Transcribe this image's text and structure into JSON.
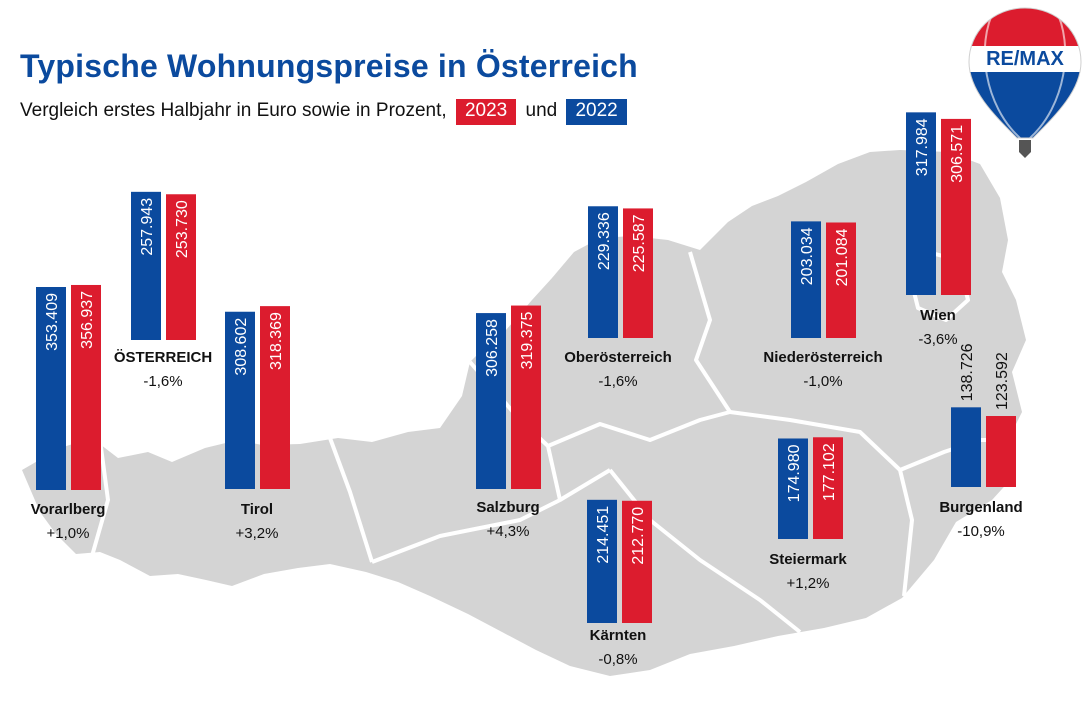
{
  "title": "Typische Wohnungspreise in Österreich",
  "subtitle": {
    "text": "Vergleich erstes Halbjahr in Euro sowie in Prozent,",
    "legend_2023": "2023",
    "connector": "und",
    "legend_2022": "2022"
  },
  "logo": {
    "text": "RE/MAX"
  },
  "colors": {
    "blue_2022": "#0b4a9e",
    "red_2023": "#dc1c2e",
    "map_gray": "#d4d4d4",
    "border_white": "#ffffff"
  },
  "chart_data": {
    "type": "bar",
    "title": "Typische Wohnungspreise in Österreich",
    "subtitle": "Vergleich erstes Halbjahr in Euro sowie in Prozent, 2023 und 2022",
    "series": [
      {
        "name": "2022",
        "color": "#0b4a9e"
      },
      {
        "name": "2023",
        "color": "#dc1c2e"
      }
    ],
    "regions": [
      {
        "name": "Vorarlberg",
        "v2022": 353409,
        "v2023": 356937,
        "label2022": "353.409",
        "label2023": "356.937",
        "change": "+1,0%"
      },
      {
        "name": "ÖSTERREICH",
        "v2022": 257943,
        "v2023": 253730,
        "label2022": "257.943",
        "label2023": "253.730",
        "change": "-1,6%"
      },
      {
        "name": "Tirol",
        "v2022": 308602,
        "v2023": 318369,
        "label2022": "308.602",
        "label2023": "318.369",
        "change": "+3,2%"
      },
      {
        "name": "Salzburg",
        "v2022": 306258,
        "v2023": 319375,
        "label2022": "306.258",
        "label2023": "319.375",
        "change": "+4,3%"
      },
      {
        "name": "Oberösterreich",
        "v2022": 229336,
        "v2023": 225587,
        "label2022": "229.336",
        "label2023": "225.587",
        "change": "-1,6%"
      },
      {
        "name": "Kärnten",
        "v2022": 214451,
        "v2023": 212770,
        "label2022": "214.451",
        "label2023": "212.770",
        "change": "-0,8%"
      },
      {
        "name": "Niederösterreich",
        "v2022": 203034,
        "v2023": 201084,
        "label2022": "203.034",
        "label2023": "201.084",
        "change": "-1,0%"
      },
      {
        "name": "Steiermark",
        "v2022": 174980,
        "v2023": 177102,
        "label2022": "174.980",
        "label2023": "177.102",
        "change": "+1,2%"
      },
      {
        "name": "Wien",
        "v2022": 317984,
        "v2023": 306571,
        "label2022": "317.984",
        "label2023": "306.571",
        "change": "-3,6%"
      },
      {
        "name": "Burgenland",
        "v2022": 138726,
        "v2023": 123592,
        "label2022": "138.726",
        "label2023": "123.592",
        "change": "-10,9%"
      }
    ]
  }
}
